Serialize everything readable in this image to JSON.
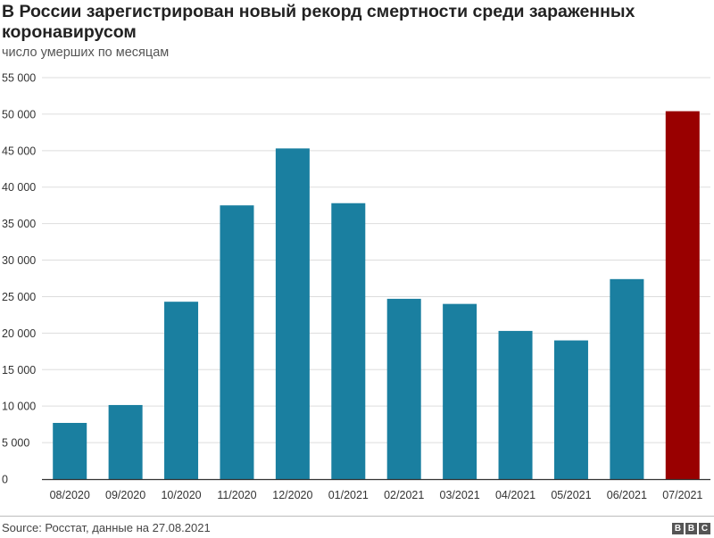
{
  "header": {
    "title": "В России зарегистрирован новый рекорд смертности среди зараженных коронавирусом",
    "subtitle": "число умерших по месяцам"
  },
  "footer": {
    "source": "Source: Росстат, данные на 27.08.2021",
    "logo_letters": [
      "B",
      "B",
      "C"
    ]
  },
  "colors": {
    "bar": "#1a7fa0",
    "highlight": "#990000",
    "grid": "#dddddd",
    "axis": "#333333"
  },
  "chart_data": {
    "type": "bar",
    "categories": [
      "08/2020",
      "09/2020",
      "10/2020",
      "11/2020",
      "12/2020",
      "01/2021",
      "02/2021",
      "03/2021",
      "04/2021",
      "05/2021",
      "06/2021",
      "07/2021"
    ],
    "values": [
      7700,
      10150,
      24300,
      37500,
      45300,
      37800,
      24700,
      24000,
      20300,
      19000,
      27400,
      50400
    ],
    "highlight_index": 11,
    "ylim": [
      0,
      55000
    ],
    "yticks": [
      0,
      5000,
      10000,
      15000,
      20000,
      25000,
      30000,
      35000,
      40000,
      45000,
      50000,
      55000
    ],
    "ytick_labels": [
      "0",
      "5 000",
      "10 000",
      "15 000",
      "20 000",
      "25 000",
      "30 000",
      "35 000",
      "40 000",
      "45 000",
      "50 000",
      "55 000"
    ],
    "xlabel": "",
    "ylabel": "",
    "grid": true
  }
}
